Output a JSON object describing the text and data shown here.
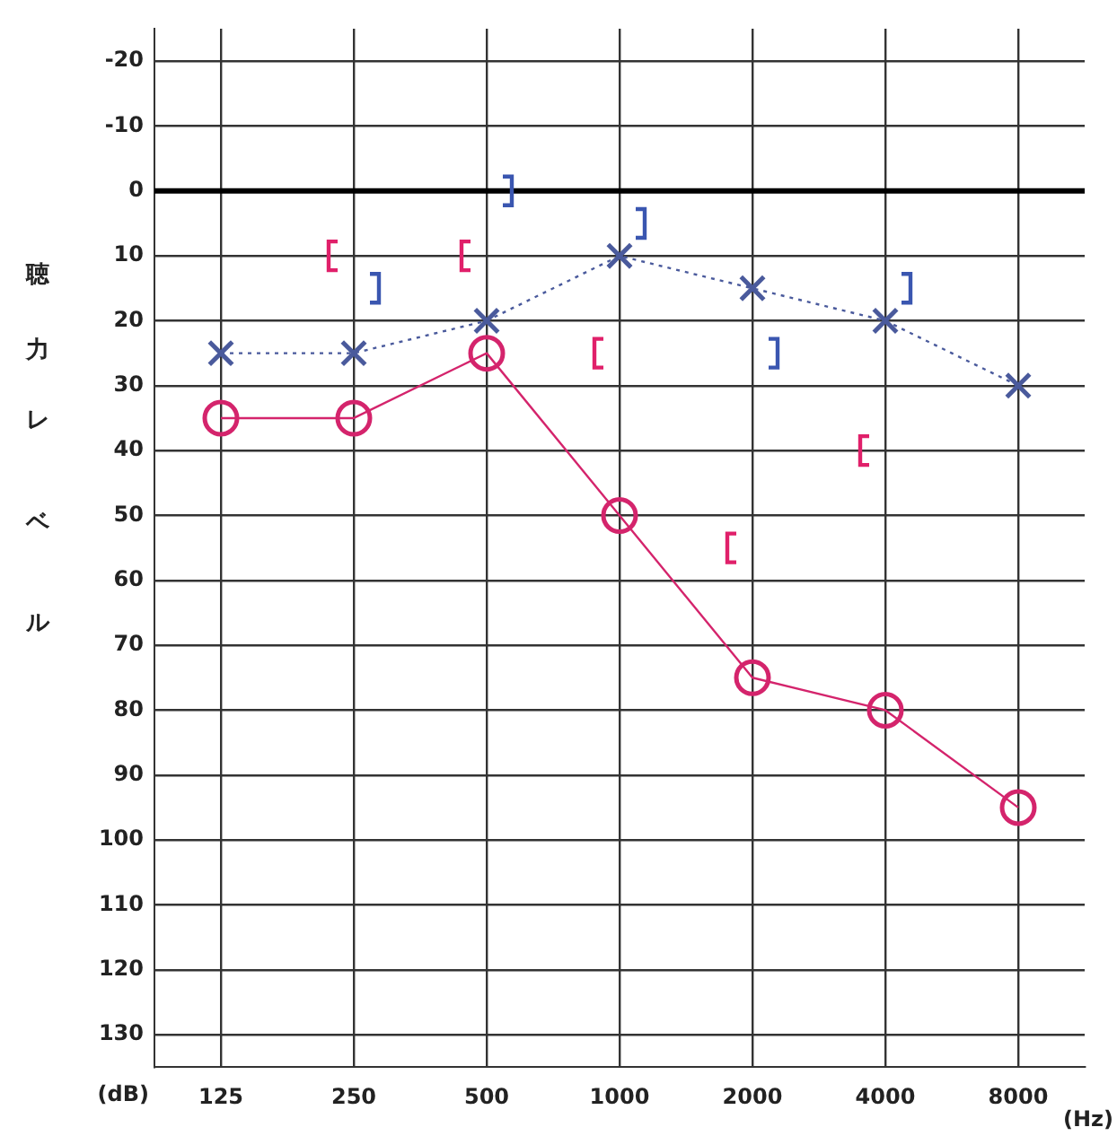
{
  "chart_data": {
    "type": "line",
    "xlabel": "(Hz)",
    "ylabel": "聴力レベル",
    "annotations": [
      "(dB)"
    ],
    "categories": [
      "125",
      "250",
      "500",
      "1000",
      "2000",
      "4000",
      "8000"
    ],
    "series": [
      {
        "color": "#d4246c",
        "values": [
          35,
          35,
          25,
          50,
          75,
          80,
          95
        ],
        "marker": "circle",
        "line_style": "solid"
      },
      {
        "color": "#4a5a9c",
        "values": [
          25,
          25,
          20,
          10,
          15,
          20,
          30
        ],
        "marker": "cross",
        "line_style": "dotted"
      },
      {
        "type": "scatter",
        "color": "#e0206a",
        "values": [
          null,
          10,
          10,
          25,
          55,
          40,
          null
        ]
      },
      {
        "type": "scatter",
        "color": "#3a56b0",
        "values": [
          null,
          15,
          0,
          5,
          25,
          15,
          null
        ]
      }
    ],
    "ylim": [
      135,
      -25
    ],
    "yticks": [
      -20,
      -10,
      0,
      10,
      20,
      30,
      40,
      50,
      60,
      70,
      80,
      90,
      100,
      110,
      120,
      130
    ],
    "ref_lines": [
      {
        "axis": "y",
        "value": 0,
        "color": "#000000"
      }
    ],
    "grid": true,
    "legend": false
  }
}
